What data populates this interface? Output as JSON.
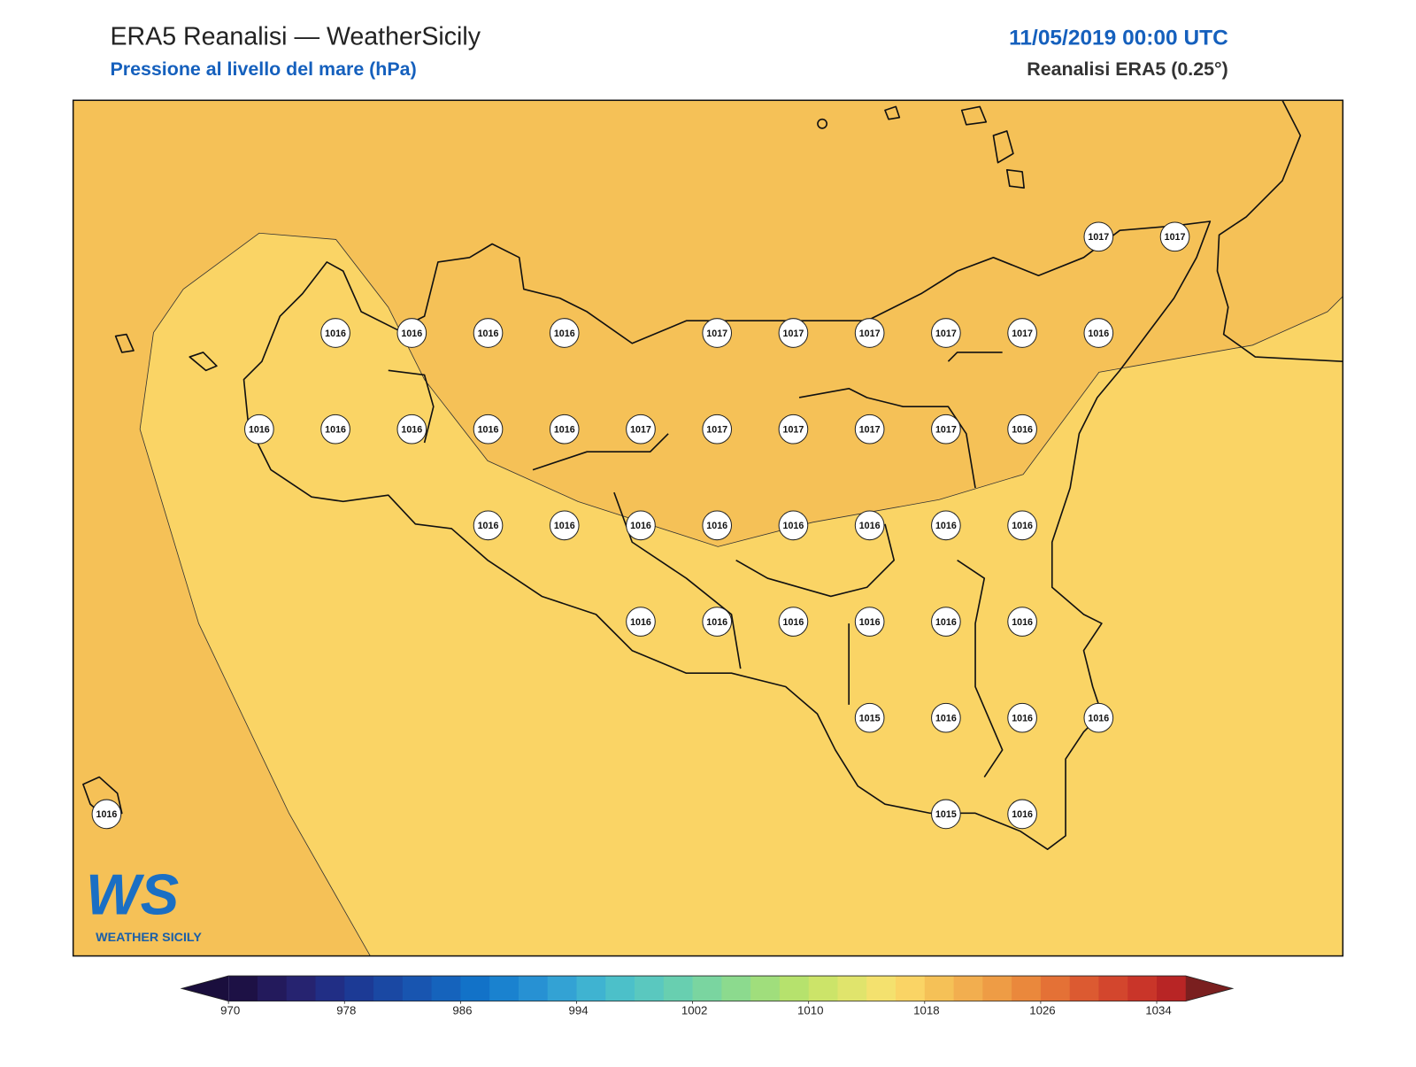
{
  "header": {
    "title": "ERA5 Reanalisi — WeatherSicily",
    "subtitle": "Pressione al livello del mare (hPa)",
    "datetime": "11/05/2019 00:00 UTC",
    "source": "Reanalisi ERA5 (0.25°)"
  },
  "map": {
    "grid": [
      [
        null,
        null,
        null,
        null,
        null,
        null,
        null,
        null,
        null,
        null,
        null,
        null,
        null,
        1017,
        1017
      ],
      [
        null,
        null,
        null,
        1016,
        1016,
        1016,
        1016,
        null,
        1017,
        1017,
        1017,
        1017,
        1017,
        1016,
        null
      ],
      [
        null,
        null,
        1016,
        1016,
        1016,
        1016,
        1016,
        1017,
        1017,
        1017,
        1017,
        1017,
        1016,
        null,
        null
      ],
      [
        null,
        null,
        null,
        null,
        null,
        1016,
        1016,
        1016,
        1016,
        1016,
        1016,
        1016,
        1016,
        null,
        null
      ],
      [
        null,
        null,
        null,
        null,
        null,
        null,
        null,
        1016,
        1016,
        1016,
        1016,
        1016,
        1016,
        null,
        null
      ],
      [
        null,
        null,
        null,
        null,
        null,
        null,
        null,
        null,
        null,
        null,
        1015,
        1016,
        1016,
        1016,
        null
      ],
      [
        1016,
        null,
        null,
        null,
        null,
        null,
        null,
        null,
        null,
        null,
        null,
        1015,
        1016,
        null,
        null
      ]
    ]
  },
  "colorbar": {
    "clim": [
      970,
      1036
    ],
    "ticks": [
      970,
      978,
      986,
      994,
      1002,
      1010,
      1018,
      1026,
      1034
    ],
    "colors": [
      "#1d1145",
      "#231a5c",
      "#262370",
      "#212e85",
      "#1c3a95",
      "#1a48a3",
      "#1855b0",
      "#1563bc",
      "#1272c8",
      "#1a82cf",
      "#2791d3",
      "#33a2d4",
      "#3fb3d1",
      "#4cc0c9",
      "#5ac8bf",
      "#68cfb0",
      "#7ad5a0",
      "#8cda8e",
      "#a0de7c",
      "#b6e26d",
      "#cce469",
      "#e0e46c",
      "#f4e16e",
      "#fad465",
      "#f5c157",
      "#f2ae4f",
      "#ee9c45",
      "#ea883c",
      "#e47136",
      "#dc5a31",
      "#d3462d",
      "#c93529",
      "#b82525"
    ],
    "extend_colors": [
      "#1a0e3d",
      "#7a1f1f"
    ]
  },
  "logo": {
    "mark": "WS",
    "name": "WEATHER SICILY"
  }
}
